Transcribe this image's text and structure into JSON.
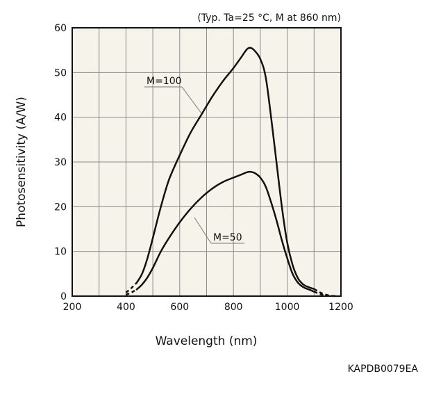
{
  "chart_data": {
    "type": "line",
    "condition_note": "(Typ. Ta=25 °C, M at 860 nm)",
    "xlabel": "Wavelength (nm)",
    "ylabel": "Photosensitivity (A/W)",
    "xlim": [
      200,
      1200
    ],
    "ylim": [
      0,
      60
    ],
    "x_ticks": [
      "200",
      "400",
      "600",
      "800",
      "1000",
      "1200"
    ],
    "y_ticks": [
      "0",
      "10",
      "20",
      "30",
      "40",
      "50",
      "60"
    ],
    "grid": true,
    "series": [
      {
        "name": "M=100",
        "solid": [
          [
            440,
            3
          ],
          [
            460,
            5
          ],
          [
            480,
            8.5
          ],
          [
            500,
            13
          ],
          [
            530,
            20
          ],
          [
            560,
            26
          ],
          [
            600,
            31.5
          ],
          [
            640,
            36.5
          ],
          [
            680,
            40.5
          ],
          [
            720,
            44.5
          ],
          [
            760,
            48
          ],
          [
            800,
            51
          ],
          [
            830,
            53.5
          ],
          [
            850,
            55.2
          ],
          [
            865,
            55.5
          ],
          [
            880,
            54.8
          ],
          [
            900,
            53
          ],
          [
            920,
            49
          ],
          [
            940,
            40
          ],
          [
            960,
            30
          ],
          [
            980,
            20
          ],
          [
            1000,
            12
          ],
          [
            1020,
            7
          ],
          [
            1040,
            4
          ],
          [
            1060,
            2.6
          ],
          [
            1080,
            2
          ],
          [
            1100,
            1.6
          ]
        ],
        "dashed_start": [
          [
            400,
            0.8
          ],
          [
            420,
            1.8
          ],
          [
            440,
            3
          ]
        ],
        "dashed_end": [
          [
            1100,
            1.6
          ],
          [
            1120,
            0.9
          ],
          [
            1140,
            0.4
          ],
          [
            1160,
            0.1
          ],
          [
            1180,
            0
          ]
        ]
      },
      {
        "name": "M=50",
        "solid": [
          [
            440,
            1.5
          ],
          [
            460,
            2.6
          ],
          [
            480,
            4.2
          ],
          [
            500,
            6.3
          ],
          [
            530,
            10
          ],
          [
            560,
            13
          ],
          [
            600,
            16.5
          ],
          [
            640,
            19.5
          ],
          [
            680,
            22
          ],
          [
            720,
            24
          ],
          [
            760,
            25.5
          ],
          [
            800,
            26.5
          ],
          [
            830,
            27.2
          ],
          [
            850,
            27.7
          ],
          [
            865,
            27.8
          ],
          [
            880,
            27.5
          ],
          [
            900,
            26.5
          ],
          [
            920,
            24.5
          ],
          [
            940,
            21
          ],
          [
            960,
            17
          ],
          [
            980,
            12.5
          ],
          [
            1000,
            8.5
          ],
          [
            1020,
            5
          ],
          [
            1040,
            3
          ],
          [
            1060,
            2
          ],
          [
            1080,
            1.5
          ],
          [
            1100,
            1
          ]
        ],
        "dashed_start": [
          [
            400,
            0.3
          ],
          [
            420,
            0.8
          ],
          [
            440,
            1.5
          ]
        ],
        "dashed_end": [
          [
            1100,
            1
          ],
          [
            1120,
            0.5
          ],
          [
            1140,
            0.2
          ],
          [
            1160,
            0.05
          ],
          [
            1180,
            0
          ]
        ]
      }
    ]
  },
  "figure_code": "KAPDB0079EA"
}
